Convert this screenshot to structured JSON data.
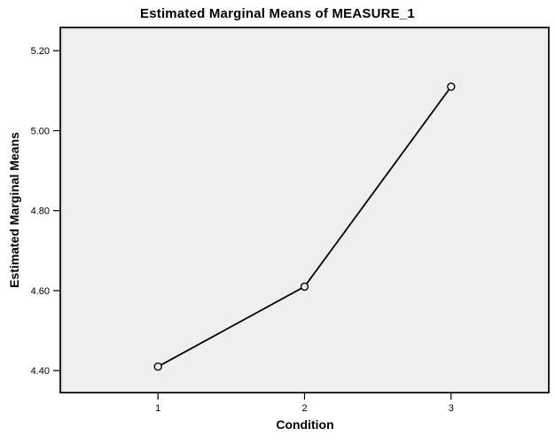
{
  "chart_data": {
    "type": "line",
    "title": "Estimated Marginal Means of MEASURE_1",
    "xlabel": "Condition",
    "ylabel": "Estimated Marginal Means",
    "categories": [
      "1",
      "2",
      "3"
    ],
    "series": [
      {
        "name": "MEASURE_1",
        "values": [
          4.41,
          4.61,
          5.11
        ]
      }
    ],
    "yticks": [
      "4.40",
      "4.60",
      "4.80",
      "5.00",
      "5.20"
    ],
    "ylim": [
      4.345,
      5.258
    ],
    "grid": false,
    "legend": "none",
    "marker": "open-circle",
    "colors": {
      "line": "#000000",
      "marker_stroke": "#000000",
      "plot_background": "#EFEFEF",
      "frame": "#262626",
      "frame_highlight": "#D8D8D8",
      "outer_background": "#FFFFFF"
    }
  }
}
